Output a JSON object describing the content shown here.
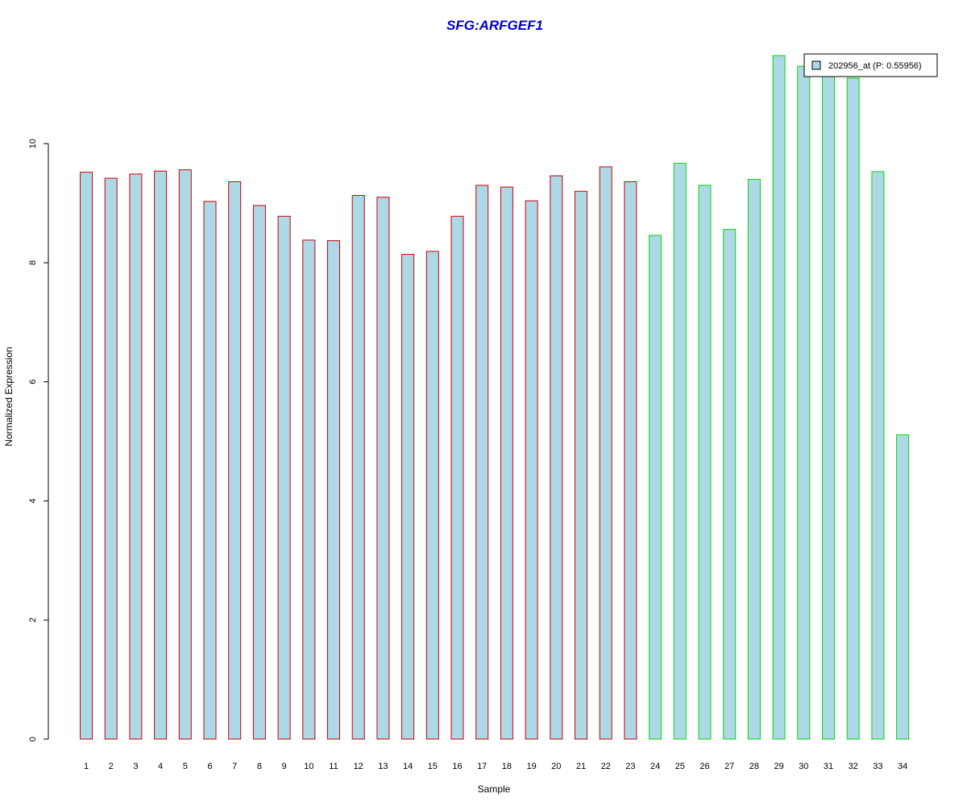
{
  "chart_data": {
    "type": "bar",
    "title": "SFG:ARFGEF1",
    "xlabel": "Sample",
    "ylabel": "Normalized Expression",
    "ylim": [
      0,
      11.6
    ],
    "yticks": [
      0,
      2,
      4,
      6,
      8,
      10
    ],
    "categories": [
      "1",
      "2",
      "3",
      "4",
      "5",
      "6",
      "7",
      "8",
      "9",
      "10",
      "11",
      "12",
      "13",
      "14",
      "15",
      "16",
      "17",
      "18",
      "19",
      "20",
      "21",
      "22",
      "23",
      "24",
      "25",
      "26",
      "27",
      "28",
      "29",
      "30",
      "31",
      "32",
      "33",
      "34"
    ],
    "values": [
      9.52,
      9.42,
      9.49,
      9.54,
      9.56,
      9.03,
      9.36,
      8.96,
      8.78,
      8.38,
      8.37,
      9.13,
      9.1,
      8.14,
      8.19,
      8.78,
      9.3,
      9.27,
      9.04,
      9.46,
      9.2,
      9.61,
      9.36,
      8.46,
      9.67,
      9.3,
      8.56,
      9.4,
      11.48,
      11.3,
      11.15,
      11.1,
      9.53,
      5.11
    ],
    "group_edge_colors": [
      "#cc0000",
      "#cc0000",
      "#cc0000",
      "#cc0000",
      "#cc0000",
      "#cc0000",
      "#cc0000",
      "#cc0000",
      "#cc0000",
      "#cc0000",
      "#cc0000",
      "#cc0000",
      "#cc0000",
      "#cc0000",
      "#cc0000",
      "#cc0000",
      "#cc0000",
      "#cc0000",
      "#cc0000",
      "#cc0000",
      "#cc0000",
      "#cc0000",
      "#cc0000",
      "#00dd00",
      "#00dd00",
      "#00dd00",
      "#00dd00",
      "#00dd00",
      "#00dd00",
      "#00dd00",
      "#00dd00",
      "#00dd00",
      "#00dd00",
      "#00dd00"
    ],
    "bar_fill": "#add8e6",
    "title_color": "#0000cc",
    "legend": {
      "position": "top-right",
      "entries": [
        {
          "label": "202956_at (P: 0.55956)",
          "fill": "#add8e6"
        }
      ]
    },
    "grid": false
  }
}
